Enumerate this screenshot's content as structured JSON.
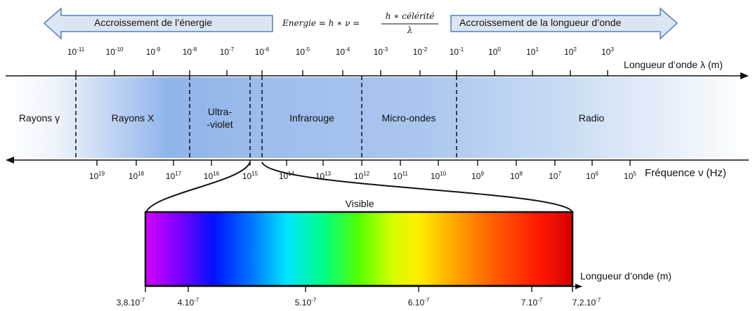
{
  "header": {
    "left_arrow_label": "Accroissement de l’énergie",
    "right_arrow_label": "Accroissement de la longueur d’onde",
    "formula_lhs": "Energie = h ∗ ν  =",
    "formula_numerator": "h ∗ célérité",
    "formula_denominator": "λ"
  },
  "axes": {
    "wavelength_label": "Longueur d’onde λ (m)",
    "frequency_label": "Fréquence ν (Hz)",
    "visible_axis_label": "Longueur d’onde (m)"
  },
  "wavelength_ticks": [
    {
      "base": "10",
      "exp": "-11"
    },
    {
      "base": "10",
      "exp": "-10"
    },
    {
      "base": "10",
      "exp": "-9"
    },
    {
      "base": "10",
      "exp": "-8"
    },
    {
      "base": "10",
      "exp": "-7"
    },
    {
      "base": "10",
      "exp": "-6"
    },
    {
      "base": "10",
      "exp": "-5"
    },
    {
      "base": "10",
      "exp": "-4"
    },
    {
      "base": "10",
      "exp": "-3"
    },
    {
      "base": "10",
      "exp": "-2"
    },
    {
      "base": "10",
      "exp": "-1"
    },
    {
      "base": "10",
      "exp": "0"
    },
    {
      "base": "10",
      "exp": "1"
    },
    {
      "base": "10",
      "exp": "2"
    },
    {
      "base": "10",
      "exp": "3"
    }
  ],
  "frequency_ticks": [
    {
      "base": "10",
      "exp": "19"
    },
    {
      "base": "10",
      "exp": "18"
    },
    {
      "base": "10",
      "exp": "17"
    },
    {
      "base": "10",
      "exp": "16"
    },
    {
      "base": "10",
      "exp": "15"
    },
    {
      "base": "10",
      "exp": "14"
    },
    {
      "base": "10",
      "exp": "13"
    },
    {
      "base": "10",
      "exp": "12"
    },
    {
      "base": "10",
      "exp": "11"
    },
    {
      "base": "10",
      "exp": "10"
    },
    {
      "base": "10",
      "exp": "9"
    },
    {
      "base": "10",
      "exp": "8"
    },
    {
      "base": "10",
      "exp": "7"
    },
    {
      "base": "10",
      "exp": "6"
    },
    {
      "base": "10",
      "exp": "5"
    }
  ],
  "regions": {
    "gamma": "Rayons γ",
    "xray": "Rayons X",
    "uv_line1": "Ultra-",
    "uv_line2": "-violet",
    "infrared": "Infrarouge",
    "microwave": "Micro-ondes",
    "radio": "Radio",
    "visible": "Visible"
  },
  "visible_ticks": [
    {
      "base": "3,8.10",
      "exp": "-7"
    },
    {
      "base": "4.10",
      "exp": "-7"
    },
    {
      "base": "5.10",
      "exp": "-7"
    },
    {
      "base": "6.10",
      "exp": "-7"
    },
    {
      "base": "7.10",
      "exp": "-7"
    },
    {
      "base": "7,2.10",
      "exp": "-7"
    }
  ],
  "colors": {
    "arrow_fill": "#dce6f2",
    "arrow_stroke": "#4f81bd",
    "band_blue": "#8fb4ea",
    "band_light": "#c6d9f3"
  }
}
